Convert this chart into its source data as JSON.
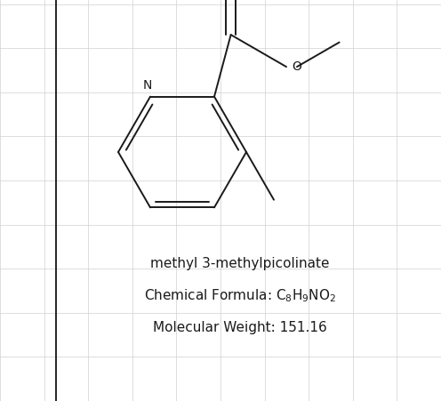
{
  "title": "methyl 3-methylpicolinate",
  "mw_line": "Molecular Weight: 151.16",
  "background_color": "#ffffff",
  "line_color": "#1a1a1a",
  "text_color": "#1a1a1a",
  "grid_color": "#d0d0d0",
  "font_size_name": 11,
  "font_size_formula": 11,
  "font_size_mw": 11,
  "figsize": [
    4.96,
    4.51
  ],
  "dpi": 100
}
